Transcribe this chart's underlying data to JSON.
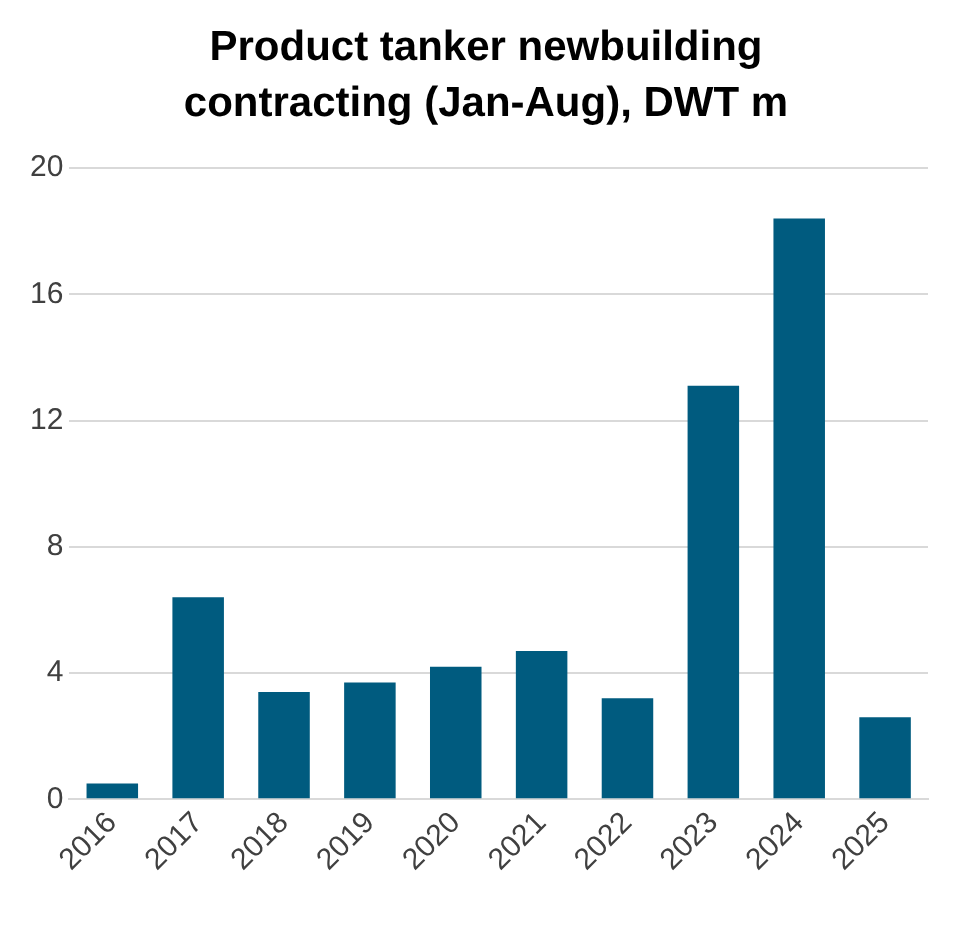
{
  "chart_data": {
    "type": "bar",
    "title": "Product tanker newbuilding contracting (Jan-Aug), DWT m",
    "categories": [
      "2016",
      "2017",
      "2018",
      "2019",
      "2020",
      "2021",
      "2022",
      "2023",
      "2024",
      "2025"
    ],
    "values": [
      0.5,
      6.4,
      3.4,
      3.7,
      4.2,
      4.7,
      3.2,
      13.1,
      18.4,
      2.6
    ],
    "color": "#005b7f",
    "ylim": [
      0,
      20
    ],
    "yticks": [
      0,
      4,
      8,
      12,
      16,
      20
    ],
    "grid": "y",
    "legend": false
  }
}
